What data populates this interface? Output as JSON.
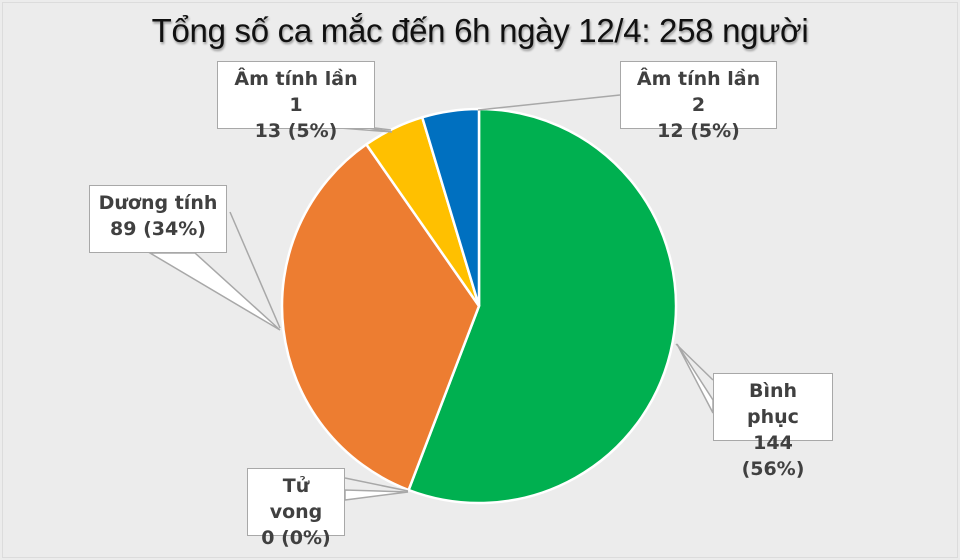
{
  "title": "Tổng số ca mắc đến 6h ngày 12/4: 258 người",
  "labels": {
    "binh_phuc": {
      "name": "Bình phục",
      "value": "144 (56%)"
    },
    "duong_tinh": {
      "name": "Dương tính",
      "value": "89 (34%)"
    },
    "am_tinh_1": {
      "name": "Âm tính lần 1",
      "value": "13 (5%)"
    },
    "am_tinh_2": {
      "name": "Âm tính lần 2",
      "value": "12 (5%)"
    },
    "tu_vong": {
      "name": "Tử vong",
      "value": "0 (0%)"
    }
  },
  "colors": {
    "binh_phuc": "#00b050",
    "duong_tinh": "#ed7d31",
    "am_tinh_1": "#ffc000",
    "am_tinh_2": "#0070c0",
    "tu_vong": "#a5a5a5",
    "background": "#ececec"
  },
  "chart_data": {
    "type": "pie",
    "title": "Tổng số ca mắc đến 6h ngày 12/4: 258 người",
    "categories": [
      "Bình phục",
      "Tử vong",
      "Dương tính",
      "Âm tính lần 1",
      "Âm tính lần 2"
    ],
    "values": [
      144,
      0,
      89,
      13,
      12
    ],
    "percentages": [
      56,
      0,
      34,
      5,
      5
    ],
    "total": 258,
    "data_labels": [
      "144 (56%)",
      "0 (0%)",
      "89 (34%)",
      "13 (5%)",
      "12 (5%)"
    ],
    "colors": [
      "#00b050",
      "#a5a5a5",
      "#ed7d31",
      "#ffc000",
      "#0070c0"
    ],
    "start_angle": "12 o'clock, clockwise",
    "legend": "none (callout labels)"
  }
}
